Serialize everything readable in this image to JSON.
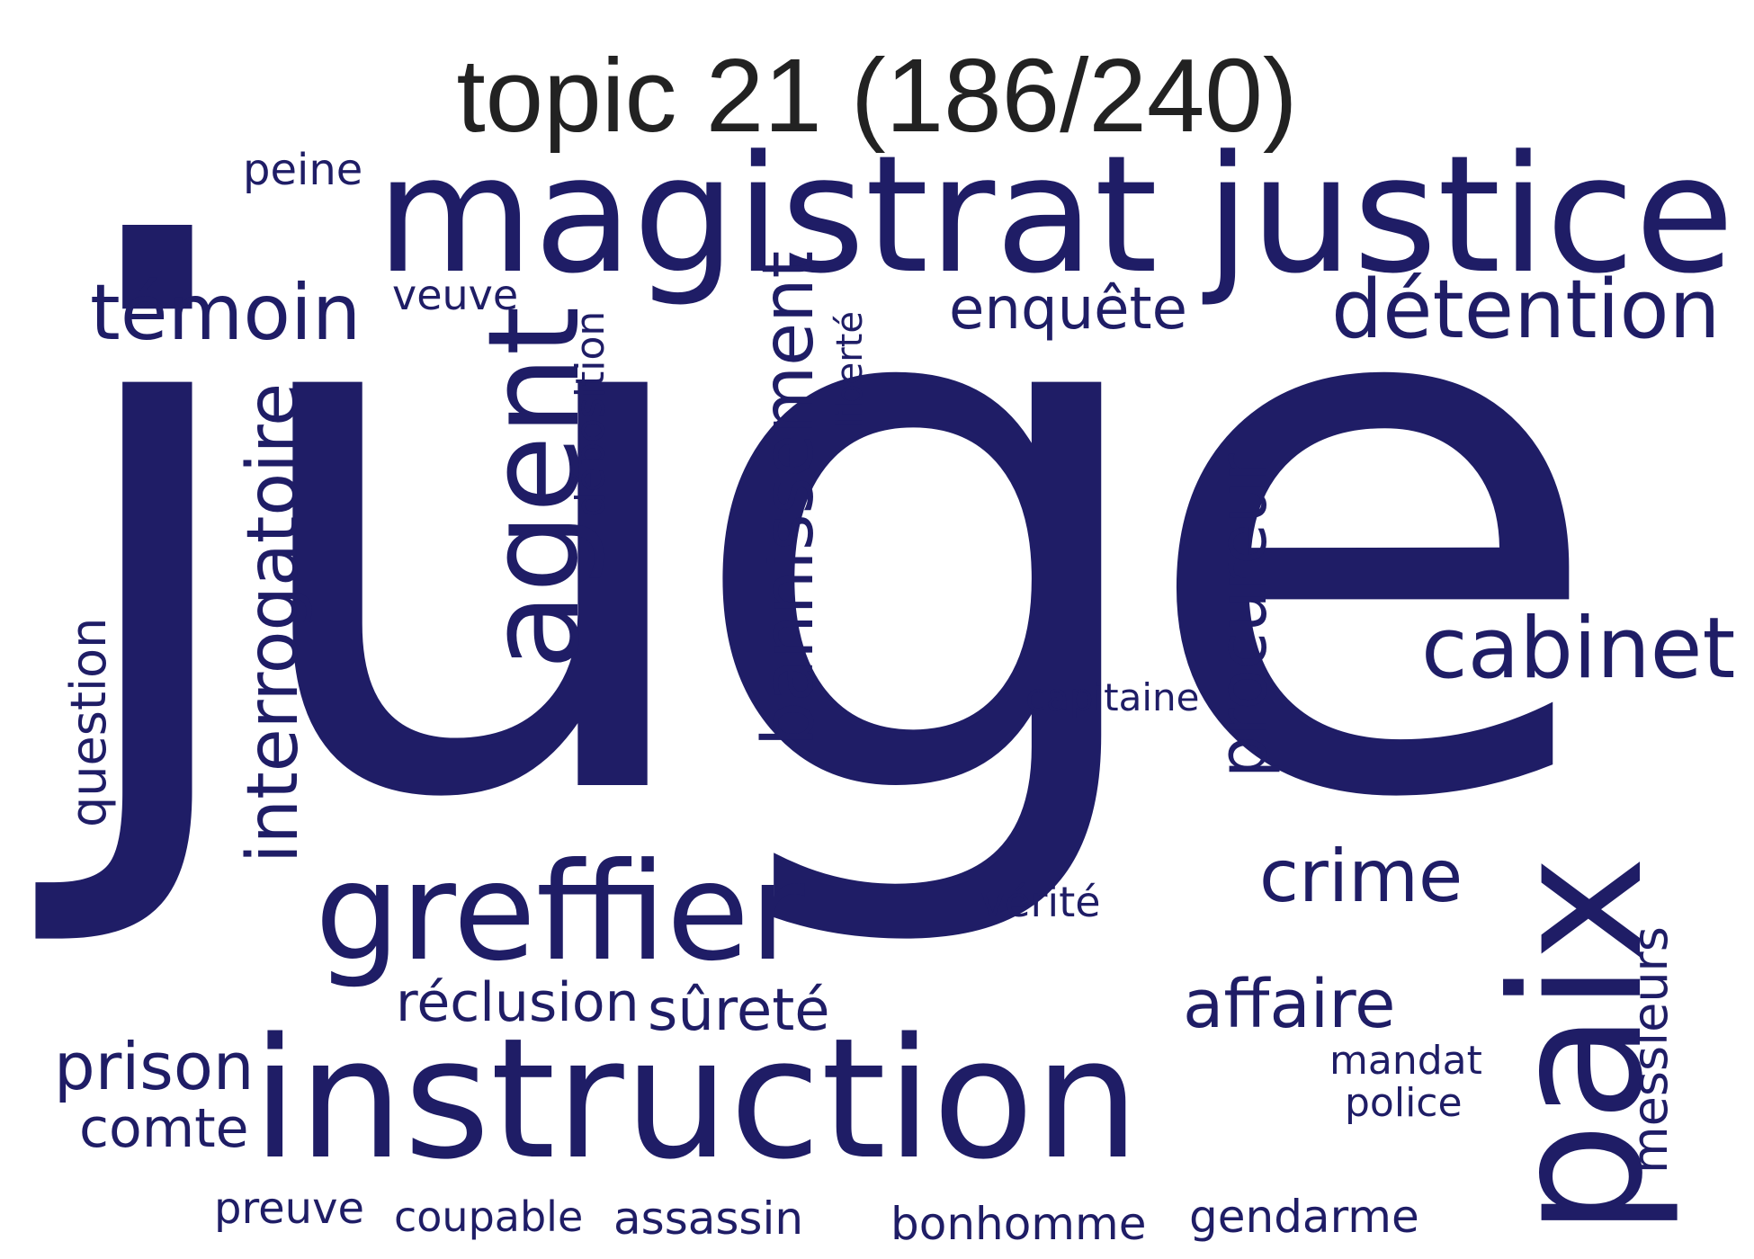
{
  "title": "topic 21 (186/240)",
  "word_color": "#1f1d66",
  "words": {
    "juge": "juge",
    "magistrat": "magistrat",
    "justice": "justice",
    "instruction": "instruction",
    "greffier": "greffier",
    "paix": "paix",
    "agent": "agent",
    "temoin": "témoin",
    "detention": "détention",
    "cabinet": "cabinet",
    "bannissement": "bannissement",
    "interrogatoire": "interrogatoire",
    "procureur": "procureur",
    "crime": "crime",
    "affaire": "affaire",
    "enquete": "enquête",
    "prison": "prison",
    "comte": "comte",
    "reclusion": "réclusion",
    "surete": "sûreté",
    "question": "question",
    "messieurs": "messieurs",
    "peine": "peine",
    "veuve": "veuve",
    "deposition": "déposition",
    "liberte": "liberté",
    "capitaine": "capitaine",
    "verite": "vérité",
    "mandat": "mandat",
    "police": "police",
    "preuve": "preuve",
    "coupable": "coupable",
    "assassin": "assassin",
    "bonhomme": "bonhomme",
    "gendarme": "gendarme"
  }
}
